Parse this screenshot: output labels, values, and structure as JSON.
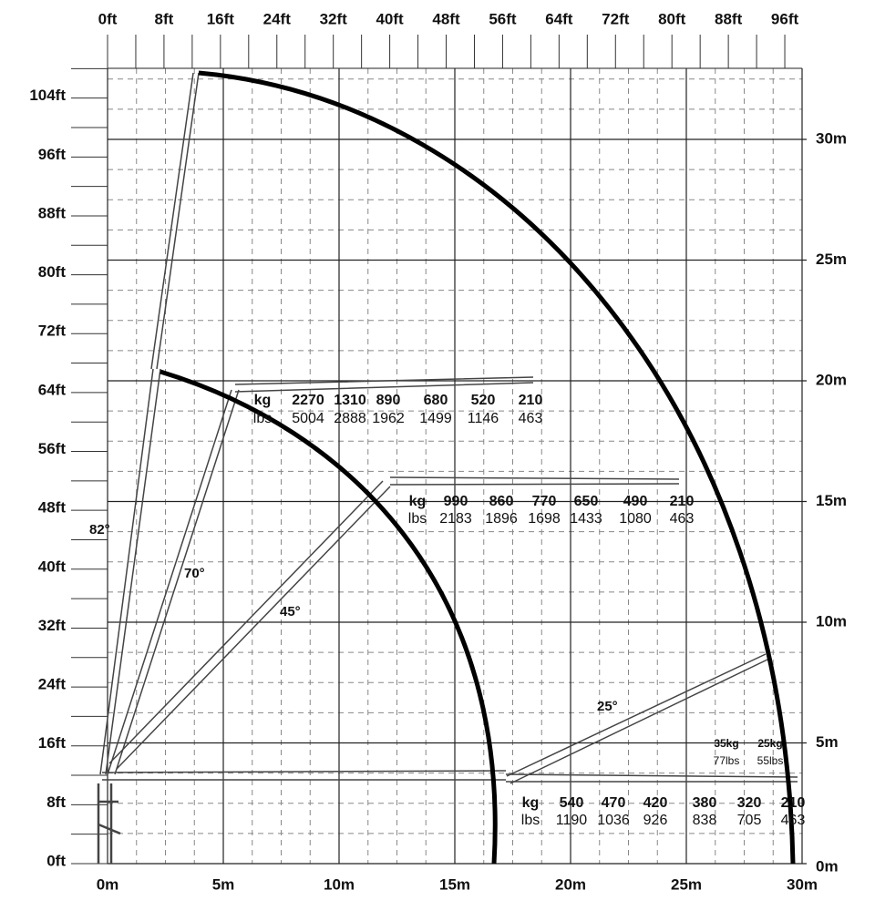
{
  "top_ft_labels": [
    "0ft",
    "8ft",
    "16ft",
    "24ft",
    "32ft",
    "40ft",
    "48ft",
    "56ft",
    "64ft",
    "72ft",
    "80ft",
    "88ft",
    "96ft"
  ],
  "left_ft_labels": [
    "0ft",
    "8ft",
    "16ft",
    "24ft",
    "32ft",
    "40ft",
    "48ft",
    "56ft",
    "64ft",
    "72ft",
    "80ft",
    "88ft",
    "96ft",
    "104ft"
  ],
  "bottom_m_labels": [
    "0m",
    "5m",
    "10m",
    "15m",
    "20m",
    "25m",
    "30m"
  ],
  "right_m_labels": [
    "0m",
    "5m",
    "10m",
    "15m",
    "20m",
    "25m",
    "30m"
  ],
  "angles": [
    "82°",
    "70°",
    "45°",
    "25°"
  ],
  "load_tables": [
    {
      "rows": [
        [
          "kg",
          "2270",
          "1310",
          "890",
          "680",
          "520",
          "210"
        ],
        [
          "lbs",
          "5004",
          "2888",
          "1962",
          "1499",
          "1146",
          "463"
        ]
      ]
    },
    {
      "rows": [
        [
          "kg",
          "990",
          "860",
          "770",
          "650",
          "490",
          "210"
        ],
        [
          "lbs",
          "2183",
          "1896",
          "1698",
          "1433",
          "1080",
          "463"
        ]
      ]
    },
    {
      "rows": [
        [
          "kg",
          "540",
          "470",
          "420",
          "380",
          "320",
          "210"
        ],
        [
          "lbs",
          "1190",
          "1036",
          "926",
          "838",
          "705",
          "463"
        ]
      ]
    }
  ],
  "tip_loads": [
    {
      "kg": "35kg",
      "lbs": "77lbs"
    },
    {
      "kg": "25kg",
      "lbs": "55lbs"
    }
  ]
}
